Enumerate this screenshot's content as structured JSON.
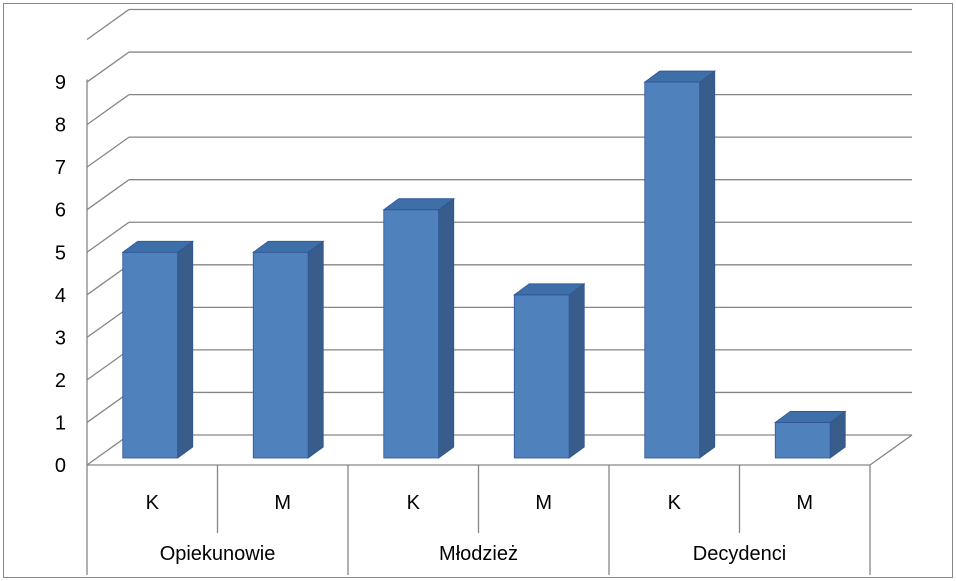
{
  "chart_data": {
    "type": "bar",
    "categories": [
      "K",
      "M",
      "K",
      "M",
      "K",
      "M"
    ],
    "groups": [
      {
        "label": "Opiekunowie",
        "categories": [
          "K",
          "M"
        ]
      },
      {
        "label": "Młodzież",
        "categories": [
          "K",
          "M"
        ]
      },
      {
        "label": "Decydenci",
        "categories": [
          "K",
          "M"
        ]
      }
    ],
    "values": [
      5,
      5,
      6,
      4,
      9,
      1
    ],
    "ylim": [
      0,
      9
    ],
    "yticks": [
      "0",
      "1",
      "2",
      "3",
      "4",
      "5",
      "6",
      "7",
      "8",
      "9"
    ],
    "title": "",
    "xlabel": "",
    "ylabel": "",
    "grid": true,
    "style": "3d-column",
    "colors": {
      "bar_front": "#4F81BD",
      "bar_side": "#385D8A",
      "bar_top": "#3F6FA8",
      "bar_edge": "#2F5597",
      "grid": "#868686",
      "frame": "#868686"
    }
  }
}
